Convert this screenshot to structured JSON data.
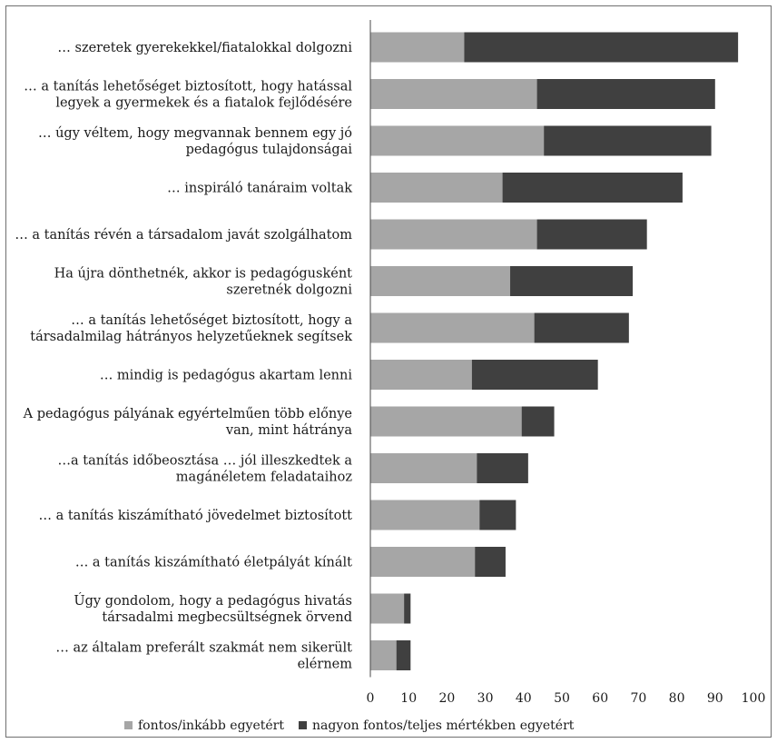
{
  "chart_data": {
    "type": "bar",
    "orientation": "horizontal",
    "stacked": true,
    "categories": [
      [
        "… szeretek gyerekekkel/fiatalokkal dolgozni"
      ],
      [
        "… a tanítás lehetőséget biztosított, hogy hatással",
        "legyek a gyermekek és a fiatalok fejlődésére"
      ],
      [
        "… úgy véltem, hogy megvannak bennem egy jó",
        "pedagógus tulajdonságai"
      ],
      [
        "… inspiráló tanáraim voltak"
      ],
      [
        "… a tanítás révén a társadalom javát szolgálhatom"
      ],
      [
        "Ha újra dönthetnék, akkor is pedagógusként",
        "szeretnék dolgozni"
      ],
      [
        "… a tanítás lehetőséget biztosított, hogy a",
        "társadalmilag hátrányos helyzetűeknek segítsek"
      ],
      [
        "… mindig is pedagógus akartam lenni"
      ],
      [
        "A pedagógus pályának egyértelműen több előnye",
        "van, mint hátránya"
      ],
      [
        "…a tanítás időbeosztása … jól illeszkedtek a",
        "magánéletem feladataihoz"
      ],
      [
        "… a tanítás kiszámítható jövedelmet biztosított"
      ],
      [
        "… a tanítás kiszámítható életpályát kínált"
      ],
      [
        "Úgy gondolom, hogy a pedagógus hivatás",
        "társadalmi megbecsültségnek örvend"
      ],
      [
        "… az általam preferált szakmát nem sikerült",
        "elérnem"
      ]
    ],
    "series": [
      {
        "name": "fontos/inkább egyetért",
        "color": "#a6a6a6",
        "values": [
          24.5,
          43.5,
          45.3,
          34.5,
          43.5,
          36.5,
          42.8,
          26.5,
          39.5,
          27.8,
          28.5,
          27.3,
          8.8,
          6.8
        ]
      },
      {
        "name": "nagyon fontos/teljes mértékben egyetért",
        "color": "#404040",
        "values": [
          71.5,
          46.5,
          43.7,
          47.0,
          28.7,
          32.0,
          24.7,
          32.9,
          8.5,
          13.4,
          9.5,
          8.0,
          1.7,
          3.7
        ]
      }
    ],
    "xlim": [
      0,
      100
    ],
    "xticks": [
      "0",
      "10",
      "20",
      "30",
      "40",
      "50",
      "60",
      "70",
      "80",
      "90",
      "100"
    ],
    "grid": false,
    "legend_position": "bottom"
  }
}
